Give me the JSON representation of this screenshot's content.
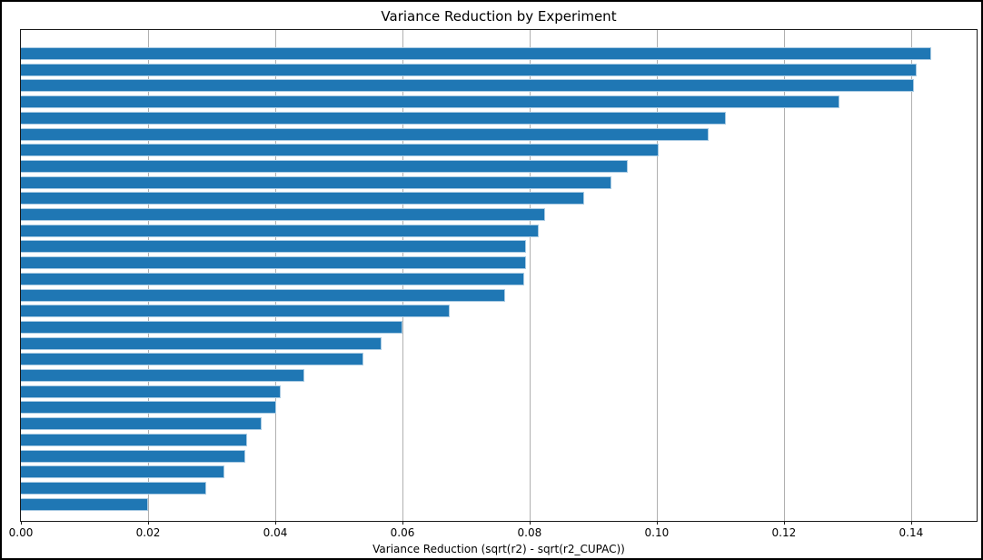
{
  "figure": {
    "background_color": "#ffffff",
    "border_color": "#000000"
  },
  "chart_data": {
    "type": "bar",
    "orientation": "horizontal",
    "title": "Variance Reduction by Experiment",
    "xlabel": "Variance Reduction (sqrt(r2) - sqrt(r2_CUPAC))",
    "ylabel": "",
    "values": [
      0.1432,
      0.1409,
      0.1405,
      0.1287,
      0.1108,
      0.1081,
      0.1003,
      0.0955,
      0.0929,
      0.0886,
      0.0824,
      0.0814,
      0.0794,
      0.0794,
      0.0791,
      0.0761,
      0.0674,
      0.06,
      0.0567,
      0.0539,
      0.0445,
      0.0408,
      0.0402,
      0.0379,
      0.0355,
      0.0353,
      0.032,
      0.0291,
      0.02
    ],
    "bar_count": 29,
    "xlim": [
      0,
      0.1503
    ],
    "xticks": [
      0.0,
      0.02,
      0.04,
      0.06,
      0.08,
      0.1,
      0.12,
      0.14
    ],
    "xtick_labels": [
      "0.00",
      "0.02",
      "0.04",
      "0.06",
      "0.08",
      "0.10",
      "0.12",
      "0.14"
    ],
    "grid": true,
    "gridline_color": "#b0b0b0",
    "bar_color": "#1f77b4",
    "bar_edge_color": "#a9cbe3",
    "legend": null,
    "ytick_labels": []
  }
}
